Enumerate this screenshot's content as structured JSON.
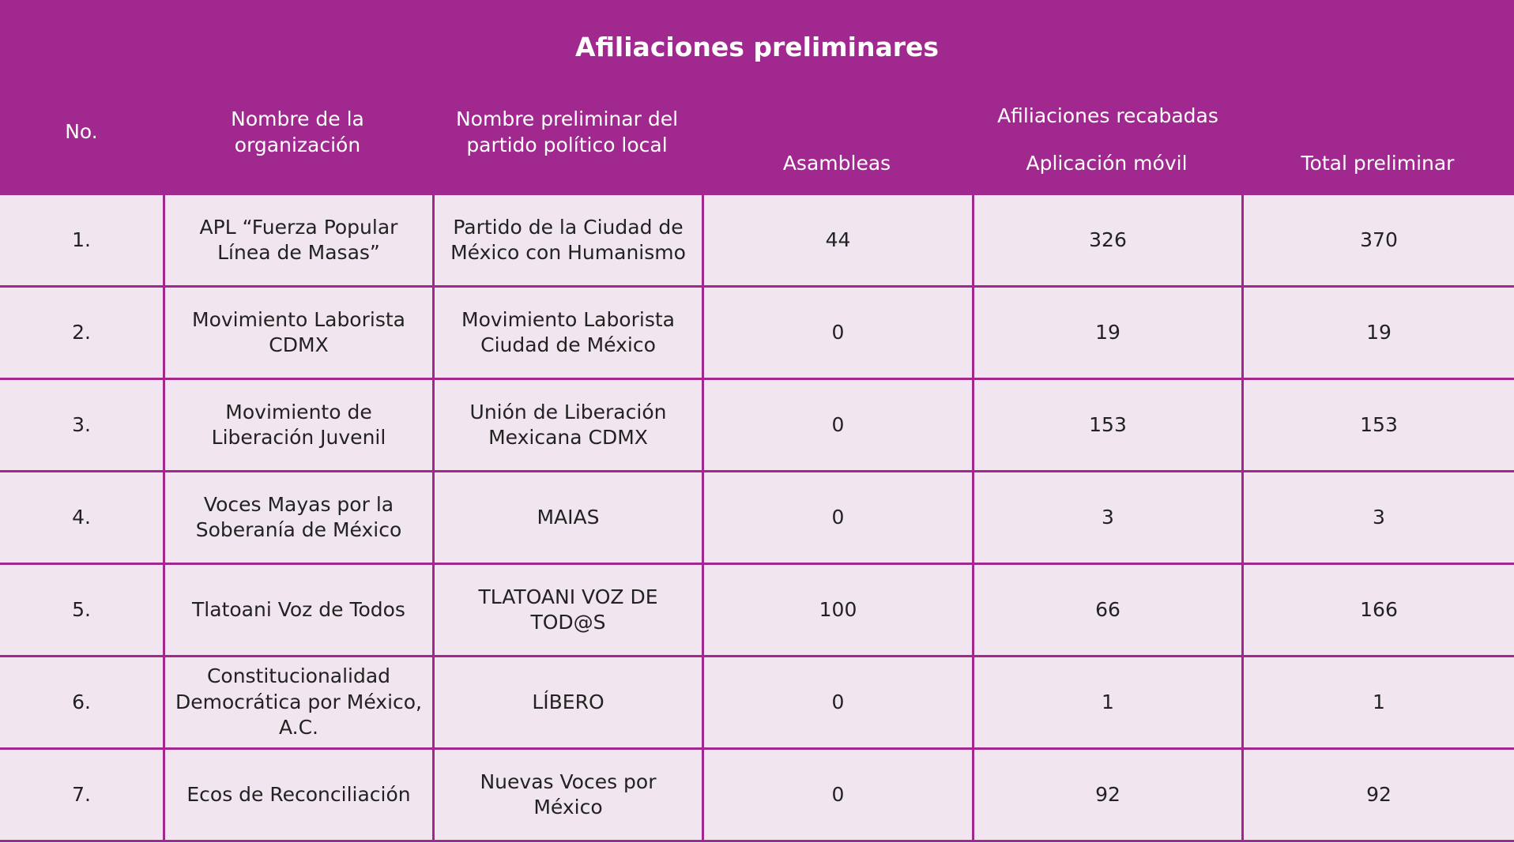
{
  "title": "Afiliaciones preliminares",
  "header": {
    "no": "No.",
    "organization": "Nombre de la organización",
    "party": "Nombre preliminar del partido político local",
    "group": "Afiliaciones recabadas",
    "assemblies": "Asambleas",
    "app": "Aplicación móvil",
    "total": "Total preliminar"
  },
  "rows": [
    [
      "1.",
      "APL “Fuerza Popular Línea de Masas”",
      "Partido de la Ciudad de México con Humanismo",
      44,
      326,
      370
    ],
    [
      "2.",
      "Movimiento Laborista CDMX",
      "Movimiento Laborista Ciudad de México",
      0,
      19,
      19
    ],
    [
      "3.",
      "Movimiento de Liberación Juvenil",
      "Unión de Liberación Mexicana CDMX",
      0,
      153,
      153
    ],
    [
      "4.",
      "Voces Mayas por la Soberanía de México",
      "MAIAS",
      0,
      3,
      3
    ],
    [
      "5.",
      "Tlatoani Voz de Todos",
      "TLATOANI VOZ DE TOD@S",
      100,
      66,
      166
    ],
    [
      "6.",
      "Constitucionalidad Democrática por México, A.C.",
      "LÍBERO",
      0,
      1,
      1
    ],
    [
      "7.",
      "Ecos de Reconciliación",
      "Nuevas Voces por México",
      0,
      92,
      92
    ]
  ]
}
